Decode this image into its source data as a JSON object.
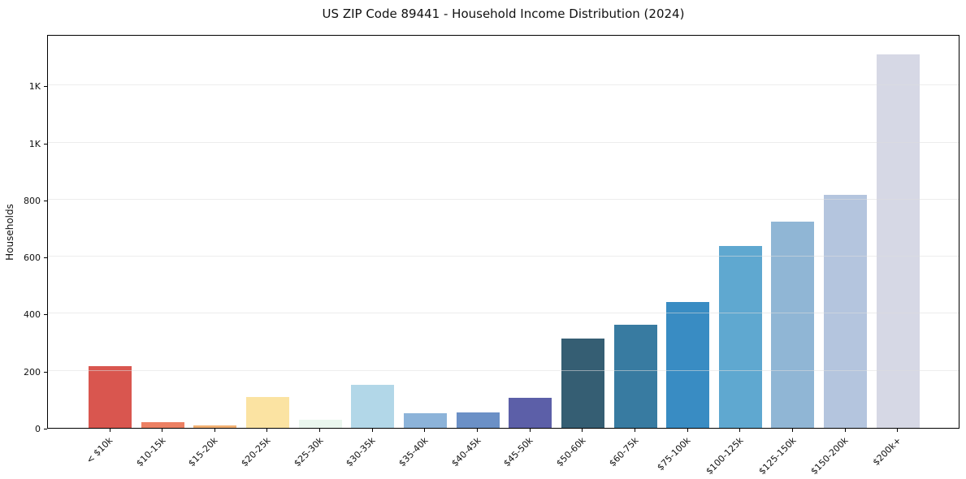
{
  "figure": {
    "background": "#ffffff"
  },
  "chart_data": {
    "type": "bar",
    "title": "US ZIP Code 89441 - Household Income Distribution (2024)",
    "xlabel": "",
    "ylabel": "Households",
    "categories": [
      "< $10k",
      "$10-15k",
      "$15-20k",
      "$20-25k",
      "$25-30k",
      "$30-35k",
      "$35-40k",
      "$40-45k",
      "$45-50k",
      "$50-60k",
      "$60-75k",
      "$75-100k",
      "$100-125k",
      "$125-150k",
      "$150-200k",
      "$200k+"
    ],
    "values": [
      215,
      20,
      10,
      107,
      28,
      150,
      50,
      55,
      104,
      314,
      360,
      440,
      636,
      722,
      818,
      1310
    ],
    "bar_colors": [
      "#d9564f",
      "#ec8063",
      "#f2b173",
      "#fbe3a2",
      "#eaf6ee",
      "#b2d7e8",
      "#8cb3d9",
      "#6b90c6",
      "#5c5fa8",
      "#355e73",
      "#387ba1",
      "#398cc3",
      "#5fa8d0",
      "#90b6d5",
      "#b4c5de",
      "#d6d8e5"
    ],
    "ylim": [
      0,
      1380
    ],
    "yticks": [
      0,
      200,
      400,
      600,
      800,
      1000,
      1200
    ],
    "ytick_labels": [
      "0",
      "200",
      "400",
      "600",
      "800",
      "1K",
      "1K"
    ],
    "x_tick_rotation_deg": 45,
    "grid": "horizontal",
    "grid_on": true,
    "legend": "none",
    "frame_color": "#000000",
    "grid_color": "#dedede",
    "text_color": "#111111",
    "plot_background": "#ffffff"
  }
}
